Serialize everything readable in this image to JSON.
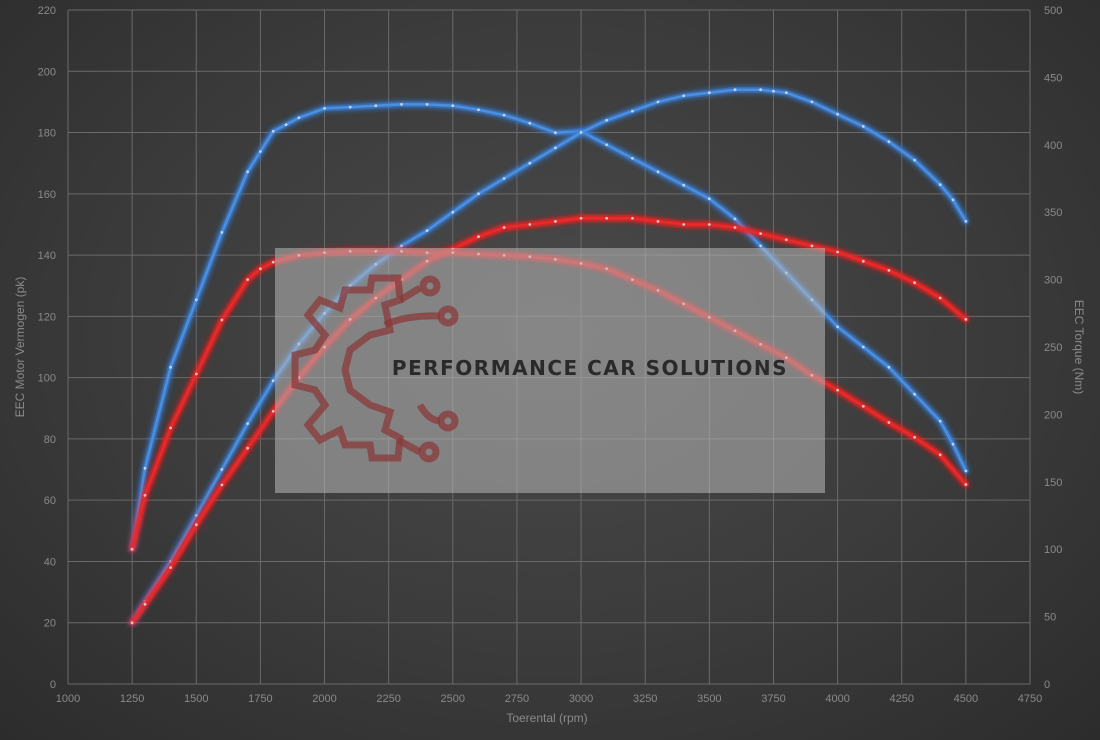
{
  "chart_data": {
    "type": "line",
    "xlabel": "Toerental (rpm)",
    "ylabel_left": "EEC Motor Vermogen (pk)",
    "ylabel_right": "EEC Torque (Nm)",
    "xlim": [
      1000,
      4750
    ],
    "ylim_left": [
      0,
      220
    ],
    "ylim_right": [
      0,
      500
    ],
    "x_ticks": [
      1000,
      1250,
      1500,
      1750,
      2000,
      2250,
      2500,
      2750,
      3000,
      3250,
      3500,
      3750,
      4000,
      4250,
      4500,
      4750
    ],
    "y_left_ticks": [
      0,
      20,
      40,
      60,
      80,
      100,
      120,
      140,
      160,
      180,
      200,
      220
    ],
    "y_right_ticks": [
      0,
      50,
      100,
      150,
      200,
      250,
      300,
      350,
      400,
      450,
      500
    ],
    "grid": true,
    "colors": {
      "blue": "#4a90e2",
      "red": "#e52b2b",
      "blue_glow": "#3a7fd8",
      "red_glow": "#ff2020"
    },
    "series": [
      {
        "axis": "right",
        "color": "blue",
        "x": [
          1250,
          1300,
          1400,
          1500,
          1600,
          1700,
          1750,
          1800,
          1850,
          1900,
          2000,
          2100,
          2200,
          2300,
          2400,
          2500,
          2600,
          2700,
          2800,
          2900,
          3000,
          3100,
          3200,
          3300,
          3400,
          3500,
          3600,
          3700,
          3800,
          3900,
          4000,
          4100,
          4200,
          4300,
          4400,
          4450,
          4500
        ],
        "values": [
          100,
          160,
          235,
          285,
          335,
          380,
          395,
          410,
          415,
          420,
          427,
          428,
          429,
          430,
          430,
          429,
          426,
          422,
          416,
          409,
          410,
          400,
          390,
          380,
          370,
          360,
          345,
          325,
          305,
          285,
          265,
          250,
          235,
          215,
          195,
          178,
          158
        ]
      },
      {
        "axis": "left",
        "color": "blue",
        "x": [
          1250,
          1300,
          1400,
          1500,
          1600,
          1700,
          1800,
          1900,
          2000,
          2100,
          2200,
          2300,
          2400,
          2500,
          2600,
          2700,
          2800,
          2900,
          3000,
          3100,
          3200,
          3300,
          3400,
          3500,
          3600,
          3700,
          3750,
          3800,
          3900,
          4000,
          4100,
          4200,
          4300,
          4400,
          4450,
          4500
        ],
        "values": [
          20,
          27,
          40,
          55,
          70,
          85,
          99,
          111,
          121,
          130,
          137,
          143,
          148,
          154,
          160,
          165,
          170,
          175,
          180,
          184,
          187,
          190,
          192,
          193,
          194,
          194,
          193.5,
          193,
          190,
          186,
          182,
          177,
          171,
          163,
          158,
          151
        ]
      },
      {
        "axis": "left",
        "color": "red",
        "x": [
          1250,
          1300,
          1400,
          1500,
          1600,
          1700,
          1800,
          1900,
          2000,
          2100,
          2200,
          2300,
          2400,
          2500,
          2600,
          2700,
          2800,
          2900,
          3000,
          3100,
          3200,
          3300,
          3400,
          3500,
          3600,
          3700,
          3800,
          3900,
          4000,
          4100,
          4200,
          4300,
          4400,
          4500
        ],
        "values": [
          20,
          26,
          38,
          52,
          65,
          77,
          89,
          100,
          110,
          119,
          126,
          132,
          138,
          142,
          146,
          149,
          150,
          151,
          152,
          152,
          152,
          151,
          150,
          150,
          149,
          147,
          145,
          143,
          141,
          138,
          135,
          131,
          126,
          119
        ]
      },
      {
        "axis": "right",
        "color": "red",
        "x": [
          1250,
          1300,
          1400,
          1500,
          1600,
          1700,
          1750,
          1800,
          1900,
          2000,
          2100,
          2200,
          2300,
          2400,
          2500,
          2600,
          2700,
          2800,
          2900,
          3000,
          3100,
          3200,
          3300,
          3400,
          3500,
          3600,
          3700,
          3800,
          3900,
          4000,
          4100,
          4200,
          4300,
          4400,
          4500
        ],
        "values": [
          100,
          140,
          190,
          230,
          270,
          300,
          308,
          313,
          318,
          320,
          321,
          321,
          321,
          320,
          320,
          319,
          318,
          317,
          315,
          312,
          308,
          300,
          292,
          282,
          272,
          262,
          252,
          242,
          229,
          218,
          206,
          194,
          183,
          170,
          148
        ]
      }
    ]
  },
  "watermark": {
    "text": "PERFORMANCE CAR SOLUTIONS"
  }
}
